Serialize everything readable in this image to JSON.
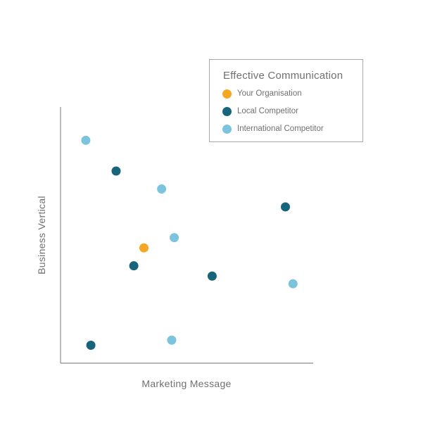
{
  "chart_data": {
    "type": "scatter",
    "xlabel": "Marketing Message",
    "ylabel": "Business Vertical",
    "xlim": [
      0,
      100
    ],
    "ylim": [
      0,
      100
    ],
    "grid": false,
    "legend_position": "top-right",
    "legend": {
      "title": "Effective Communication"
    },
    "series": [
      {
        "name": "Your Organisation",
        "color": "#f5a623",
        "points": [
          {
            "x": 33,
            "y": 45
          }
        ]
      },
      {
        "name": "Local Competitor",
        "color": "#17657a",
        "points": [
          {
            "x": 22,
            "y": 75
          },
          {
            "x": 29,
            "y": 38
          },
          {
            "x": 60,
            "y": 34
          },
          {
            "x": 89,
            "y": 61
          },
          {
            "x": 12,
            "y": 7
          }
        ]
      },
      {
        "name": "International Competitor",
        "color": "#7cc4de",
        "points": [
          {
            "x": 10,
            "y": 87
          },
          {
            "x": 40,
            "y": 68
          },
          {
            "x": 45,
            "y": 49
          },
          {
            "x": 92,
            "y": 31
          },
          {
            "x": 44,
            "y": 9
          }
        ]
      }
    ]
  }
}
